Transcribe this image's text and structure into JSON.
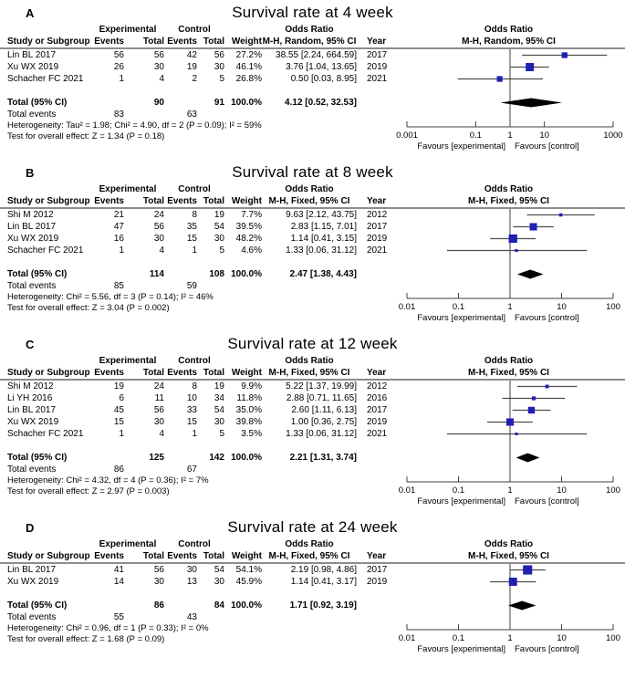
{
  "colors": {
    "square": "#1f1fb4",
    "diamond": "#000000",
    "ci_line": "#4d4d4d",
    "axis_line": "#3f3f3f",
    "header_rule": "#8c8c8c",
    "text": "#000000",
    "background": "#ffffff"
  },
  "table_headers": {
    "study": "Study or Subgroup",
    "group_experimental": "Experimental",
    "group_control": "Control",
    "events": "Events",
    "total": "Total",
    "weight": "Weight",
    "odds_ratio": "Odds Ratio",
    "year": "Year"
  },
  "chart_data": [
    {
      "type": "forest",
      "panel_label": "A",
      "title": "Survival rate at 4 week",
      "effect_model_header": "M-H, Random, 95% CI",
      "axis": {
        "scale": "log",
        "min": 0.001,
        "max": 1000,
        "ticks": [
          0.001,
          0.1,
          1,
          10,
          1000
        ],
        "tick_labels": [
          "0.001",
          "0.1",
          "1",
          "10",
          "1000"
        ]
      },
      "favours_left": "Favours [experimental]",
      "favours_right": "Favours [control]",
      "studies": [
        {
          "study": "Lin BL 2017",
          "exp_events": "56",
          "exp_total": "56",
          "ctl_events": "42",
          "ctl_total": "56",
          "weight": "27.2%",
          "weight_pct": 27.2,
          "or": 38.55,
          "ci_low": 2.24,
          "ci_high": 664.59,
          "or_ci_text": "38.55 [2.24, 664.59]",
          "year": "2017"
        },
        {
          "study": "Xu WX 2019",
          "exp_events": "26",
          "exp_total": "30",
          "ctl_events": "19",
          "ctl_total": "30",
          "weight": "46.1%",
          "weight_pct": 46.1,
          "or": 3.76,
          "ci_low": 1.04,
          "ci_high": 13.65,
          "or_ci_text": "3.76 [1.04, 13.65]",
          "year": "2019"
        },
        {
          "study": "Schacher FC 2021",
          "exp_events": "1",
          "exp_total": "4",
          "ctl_events": "2",
          "ctl_total": "5",
          "weight": "26.8%",
          "weight_pct": 26.8,
          "or": 0.5,
          "ci_low": 0.03,
          "ci_high": 8.95,
          "or_ci_text": "0.50 [0.03, 8.95]",
          "year": "2021"
        }
      ],
      "total_row": {
        "label": "Total (95% CI)",
        "exp_total": "90",
        "ctl_total": "91",
        "weight": "100.0%",
        "or": 4.12,
        "ci_low": 0.52,
        "ci_high": 32.53,
        "or_ci_text": "4.12 [0.52, 32.53]"
      },
      "total_events": {
        "label": "Total events",
        "experimental": "83",
        "control": "63"
      },
      "heterogeneity": "Heterogeneity: Tau² = 1.98; Chi² = 4.90, df = 2 (P = 0.09); I² = 59%",
      "overall_effect_test": "Test for overall effect: Z = 1.34 (P = 0.18)"
    },
    {
      "type": "forest",
      "panel_label": "B",
      "title": "Survival rate at 8 week",
      "effect_model_header": "M-H, Fixed, 95% CI",
      "axis": {
        "scale": "log",
        "min": 0.01,
        "max": 100,
        "ticks": [
          0.01,
          0.1,
          1,
          10,
          100
        ],
        "tick_labels": [
          "0.01",
          "0.1",
          "1",
          "10",
          "100"
        ]
      },
      "favours_left": "Favours [experimental]",
      "favours_right": "Favours [control]",
      "studies": [
        {
          "study": "Shi M 2012",
          "exp_events": "21",
          "exp_total": "24",
          "ctl_events": "8",
          "ctl_total": "19",
          "weight": "7.7%",
          "weight_pct": 7.7,
          "or": 9.63,
          "ci_low": 2.12,
          "ci_high": 43.75,
          "or_ci_text": "9.63 [2.12, 43.75]",
          "year": "2012"
        },
        {
          "study": "Lin BL 2017",
          "exp_events": "47",
          "exp_total": "56",
          "ctl_events": "35",
          "ctl_total": "54",
          "weight": "39.5%",
          "weight_pct": 39.5,
          "or": 2.83,
          "ci_low": 1.15,
          "ci_high": 7.01,
          "or_ci_text": "2.83 [1.15, 7.01]",
          "year": "2017"
        },
        {
          "study": "Xu WX 2019",
          "exp_events": "16",
          "exp_total": "30",
          "ctl_events": "15",
          "ctl_total": "30",
          "weight": "48.2%",
          "weight_pct": 48.2,
          "or": 1.14,
          "ci_low": 0.41,
          "ci_high": 3.15,
          "or_ci_text": "1.14 [0.41, 3.15]",
          "year": "2019"
        },
        {
          "study": "Schacher FC 2021",
          "exp_events": "1",
          "exp_total": "4",
          "ctl_events": "1",
          "ctl_total": "5",
          "weight": "4.6%",
          "weight_pct": 4.6,
          "or": 1.33,
          "ci_low": 0.06,
          "ci_high": 31.12,
          "or_ci_text": "1.33 [0.06, 31.12]",
          "year": "2021"
        }
      ],
      "total_row": {
        "label": "Total (95% CI)",
        "exp_total": "114",
        "ctl_total": "108",
        "weight": "100.0%",
        "or": 2.47,
        "ci_low": 1.38,
        "ci_high": 4.43,
        "or_ci_text": "2.47 [1.38, 4.43]"
      },
      "total_events": {
        "label": "Total events",
        "experimental": "85",
        "control": "59"
      },
      "heterogeneity": "Heterogeneity: Chi² = 5.56, df = 3 (P = 0.14); I² = 46%",
      "overall_effect_test": "Test for overall effect: Z = 3.04 (P = 0.002)"
    },
    {
      "type": "forest",
      "panel_label": "C",
      "title": "Survival rate at 12 week",
      "effect_model_header": "M-H, Fixed, 95% CI",
      "axis": {
        "scale": "log",
        "min": 0.01,
        "max": 100,
        "ticks": [
          0.01,
          0.1,
          1,
          10,
          100
        ],
        "tick_labels": [
          "0.01",
          "0.1",
          "1",
          "10",
          "100"
        ]
      },
      "favours_left": "Favours [experimental]",
      "favours_right": "Favours [control]",
      "studies": [
        {
          "study": "Shi M 2012",
          "exp_events": "19",
          "exp_total": "24",
          "ctl_events": "8",
          "ctl_total": "19",
          "weight": "9.9%",
          "weight_pct": 9.9,
          "or": 5.22,
          "ci_low": 1.37,
          "ci_high": 19.99,
          "or_ci_text": "5.22 [1.37, 19.99]",
          "year": "2012"
        },
        {
          "study": "Li YH 2016",
          "exp_events": "6",
          "exp_total": "11",
          "ctl_events": "10",
          "ctl_total": "34",
          "weight": "11.8%",
          "weight_pct": 11.8,
          "or": 2.88,
          "ci_low": 0.71,
          "ci_high": 11.65,
          "or_ci_text": "2.88 [0.71, 11.65]",
          "year": "2016"
        },
        {
          "study": "Lin BL 2017",
          "exp_events": "45",
          "exp_total": "56",
          "ctl_events": "33",
          "ctl_total": "54",
          "weight": "35.0%",
          "weight_pct": 35.0,
          "or": 2.6,
          "ci_low": 1.11,
          "ci_high": 6.13,
          "or_ci_text": "2.60 [1.11, 6.13]",
          "year": "2017"
        },
        {
          "study": "Xu WX 2019",
          "exp_events": "15",
          "exp_total": "30",
          "ctl_events": "15",
          "ctl_total": "30",
          "weight": "39.8%",
          "weight_pct": 39.8,
          "or": 1.0,
          "ci_low": 0.36,
          "ci_high": 2.75,
          "or_ci_text": "1.00 [0.36, 2.75]",
          "year": "2019"
        },
        {
          "study": "Schacher FC 2021",
          "exp_events": "1",
          "exp_total": "4",
          "ctl_events": "1",
          "ctl_total": "5",
          "weight": "3.5%",
          "weight_pct": 3.5,
          "or": 1.33,
          "ci_low": 0.06,
          "ci_high": 31.12,
          "or_ci_text": "1.33 [0.06, 31.12]",
          "year": "2021"
        }
      ],
      "total_row": {
        "label": "Total (95% CI)",
        "exp_total": "125",
        "ctl_total": "142",
        "weight": "100.0%",
        "or": 2.21,
        "ci_low": 1.31,
        "ci_high": 3.74,
        "or_ci_text": "2.21 [1.31, 3.74]"
      },
      "total_events": {
        "label": "Total events",
        "experimental": "86",
        "control": "67"
      },
      "heterogeneity": "Heterogeneity: Chi² = 4.32, df = 4 (P = 0.36); I² = 7%",
      "overall_effect_test": "Test for overall effect: Z = 2.97 (P = 0.003)"
    },
    {
      "type": "forest",
      "panel_label": "D",
      "title": "Survival rate at 24 week",
      "effect_model_header": "M-H, Fixed, 95% CI",
      "axis": {
        "scale": "log",
        "min": 0.01,
        "max": 100,
        "ticks": [
          0.01,
          0.1,
          1,
          10,
          100
        ],
        "tick_labels": [
          "0.01",
          "0.1",
          "1",
          "10",
          "100"
        ]
      },
      "favours_left": "Favours [experimental]",
      "favours_right": "Favours [control]",
      "studies": [
        {
          "study": "Lin BL 2017",
          "exp_events": "41",
          "exp_total": "56",
          "ctl_events": "30",
          "ctl_total": "54",
          "weight": "54.1%",
          "weight_pct": 54.1,
          "or": 2.19,
          "ci_low": 0.98,
          "ci_high": 4.86,
          "or_ci_text": "2.19 [0.98, 4.86]",
          "year": "2017"
        },
        {
          "study": "Xu WX 2019",
          "exp_events": "14",
          "exp_total": "30",
          "ctl_events": "13",
          "ctl_total": "30",
          "weight": "45.9%",
          "weight_pct": 45.9,
          "or": 1.14,
          "ci_low": 0.41,
          "ci_high": 3.17,
          "or_ci_text": "1.14 [0.41, 3.17]",
          "year": "2019"
        }
      ],
      "total_row": {
        "label": "Total (95% CI)",
        "exp_total": "86",
        "ctl_total": "84",
        "weight": "100.0%",
        "or": 1.71,
        "ci_low": 0.92,
        "ci_high": 3.19,
        "or_ci_text": "1.71 [0.92, 3.19]"
      },
      "total_events": {
        "label": "Total events",
        "experimental": "55",
        "control": "43"
      },
      "heterogeneity": "Heterogeneity: Chi² = 0.96, df = 1 (P = 0.33); I² = 0%",
      "overall_effect_test": "Test for overall effect: Z = 1.68 (P = 0.09)"
    }
  ]
}
